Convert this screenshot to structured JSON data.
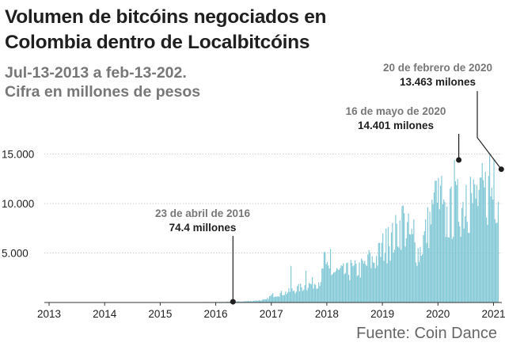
{
  "title_line1": "Volumen de bitcóins negociados en",
  "title_line2": "Colombia dentro de Localbitcóins",
  "subtitle_line1": "Jul-13-2013 a feb-13-202.",
  "subtitle_line2": "Cifra en millones de pesos",
  "source": "Fuente: Coin Dance",
  "colors": {
    "bars": "#7fc7d5",
    "text": "#1f1f1f",
    "muted": "#777777",
    "axis": "#333333",
    "grid": "#bdbdbd"
  },
  "chart_data": {
    "type": "bar",
    "x_unit": "year",
    "xlim": [
      2012.9,
      2021.15
    ],
    "ylim": [
      0,
      16000
    ],
    "y_ticks": [
      {
        "value": 5000,
        "label": "5.000"
      },
      {
        "value": 10000,
        "label": "10.000"
      },
      {
        "value": 15000,
        "label": "15.000"
      }
    ],
    "x_ticks": [
      {
        "value": 2013,
        "label": "2013"
      },
      {
        "value": 2014,
        "label": "2014"
      },
      {
        "value": 2015,
        "label": "2015"
      },
      {
        "value": 2016,
        "label": "2016"
      },
      {
        "value": 2017,
        "label": "2017"
      },
      {
        "value": 2018,
        "label": "2018"
      },
      {
        "value": 2019,
        "label": "2019"
      },
      {
        "value": 2020,
        "label": "2020"
      },
      {
        "value": 2021,
        "label": "2021"
      }
    ],
    "grid": "horizontal",
    "profile": [
      [
        2013.0,
        0
      ],
      [
        2015.5,
        20
      ],
      [
        2016.3,
        74.4
      ],
      [
        2016.6,
        150
      ],
      [
        2016.9,
        300
      ],
      [
        2017.0,
        800
      ],
      [
        2017.25,
        1100
      ],
      [
        2017.5,
        1600
      ],
      [
        2017.85,
        2400
      ],
      [
        2017.95,
        3500
      ],
      [
        2018.3,
        3300
      ],
      [
        2018.6,
        3800
      ],
      [
        2018.9,
        5000
      ],
      [
        2019.0,
        6200
      ],
      [
        2019.2,
        7200
      ],
      [
        2019.35,
        9000
      ],
      [
        2019.5,
        7200
      ],
      [
        2019.65,
        5500
      ],
      [
        2019.8,
        8300
      ],
      [
        2020.0,
        11500
      ],
      [
        2020.1,
        9000
      ],
      [
        2020.3,
        10500
      ],
      [
        2020.5,
        11000
      ],
      [
        2020.8,
        12000
      ],
      [
        2020.95,
        12500
      ],
      [
        2021.08,
        12500
      ]
    ],
    "spikes": [
      [
        2017.35,
        3700
      ],
      [
        2017.62,
        3200
      ],
      [
        2017.95,
        5100
      ],
      [
        2018.05,
        5400
      ],
      [
        2018.43,
        4300
      ],
      [
        2018.75,
        5300
      ],
      [
        2019.1,
        7600
      ],
      [
        2019.36,
        9800
      ],
      [
        2019.55,
        8400
      ],
      [
        2019.95,
        12300
      ],
      [
        2020.05,
        12800
      ],
      [
        2020.29,
        14401
      ],
      [
        2020.5,
        11900
      ],
      [
        2020.58,
        12700
      ],
      [
        2020.75,
        12600
      ],
      [
        2020.85,
        13200
      ],
      [
        2020.92,
        14900
      ],
      [
        2021.0,
        14500
      ]
    ],
    "annotations": [
      {
        "x": 2016.31,
        "y": 74.4,
        "date": "23 de abril de 2016",
        "value": "74.4 millones"
      },
      {
        "x": 2020.375,
        "y": 14401,
        "date": "16 de mayo de 2020",
        "value": "14.401 milones"
      },
      {
        "x": 2021.14,
        "y": 13463,
        "date": "20 de febrero de 2020",
        "value": "13.463 milones"
      }
    ]
  }
}
